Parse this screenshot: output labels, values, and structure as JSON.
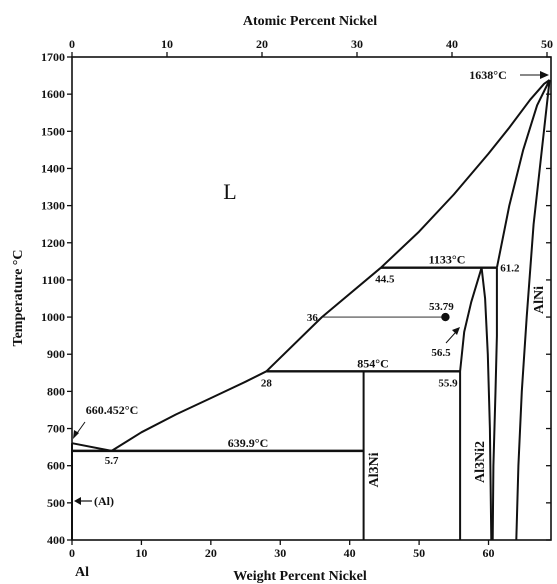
{
  "chart_data": {
    "type": "line",
    "title": "Atomic Percent Nickel",
    "xlabel": "Weight Percent Nickel",
    "ylabel": "Temperature °C",
    "x2label": "Atomic Percent Nickel",
    "xlim": [
      0,
      69
    ],
    "ylim": [
      400,
      1700
    ],
    "x2lim": [
      0,
      50
    ],
    "xticks": [
      0,
      10,
      20,
      30,
      40,
      50,
      60
    ],
    "yticks": [
      400,
      500,
      600,
      700,
      800,
      900,
      1000,
      1100,
      1200,
      1300,
      1400,
      1500,
      1600,
      1700
    ],
    "x2ticks": [
      0,
      10,
      20,
      30,
      40,
      50
    ],
    "grid": false,
    "series": [
      {
        "values": [
          [
            0,
            660.452
          ],
          [
            5.7,
            639.9
          ]
        ]
      },
      {
        "values": [
          [
            5.7,
            639.9
          ],
          [
            10,
            690
          ],
          [
            15,
            738
          ],
          [
            20,
            782
          ],
          [
            25,
            826
          ],
          [
            28,
            854
          ]
        ]
      },
      {
        "values": [
          [
            28,
            854
          ],
          [
            36,
            1000
          ],
          [
            44.5,
            1133
          ]
        ]
      },
      {
        "values": [
          [
            44.5,
            1133
          ],
          [
            50,
            1230
          ],
          [
            55,
            1330
          ],
          [
            60,
            1440
          ],
          [
            63,
            1510
          ],
          [
            66,
            1585
          ],
          [
            68,
            1628
          ],
          [
            68.8,
            1638
          ]
        ]
      },
      {
        "values": [
          [
            61.2,
            1133
          ],
          [
            63,
            1300
          ],
          [
            65,
            1450
          ],
          [
            67,
            1570
          ],
          [
            68.8,
            1638
          ]
        ]
      },
      {
        "values": [
          [
            64,
            400
          ],
          [
            64.3,
            600
          ],
          [
            64.8,
            800
          ],
          [
            65.5,
            1000
          ],
          [
            66.5,
            1250
          ],
          [
            68.8,
            1638
          ]
        ]
      },
      {
        "values": [
          [
            60.6,
            400
          ],
          [
            60.7,
            600
          ],
          [
            61,
            800
          ],
          [
            61.2,
            950
          ],
          [
            61.2,
            1133
          ]
        ]
      },
      {
        "values": [
          [
            55.9,
            400
          ],
          [
            55.9,
            854
          ],
          [
            56.5,
            960
          ],
          [
            57.5,
            1040
          ],
          [
            59,
            1133
          ]
        ]
      },
      {
        "values": [
          [
            59,
            1133
          ],
          [
            59.5,
            1050
          ],
          [
            59.9,
            900
          ],
          [
            60.2,
            700
          ],
          [
            60.4,
            400
          ]
        ]
      },
      {
        "values": [
          [
            42,
            400
          ],
          [
            42,
            854
          ]
        ]
      },
      {
        "values": [
          [
            0,
            400
          ],
          [
            0,
            660.452
          ]
        ]
      }
    ],
    "isotherms": [
      {
        "x": [
          0,
          42
        ],
        "y": 639.9,
        "label": "639.9°C"
      },
      {
        "x": [
          28,
          55.9
        ],
        "y": 854,
        "label": "854°C"
      },
      {
        "x": [
          44.5,
          61.2
        ],
        "y": 1133,
        "label": "1133°C"
      }
    ],
    "tie_line": {
      "x": [
        36,
        53.79
      ],
      "y": 1000
    },
    "point": {
      "x": 53.79,
      "y": 1000,
      "label": "53.79"
    },
    "annotations": [
      {
        "text": "660.452°C",
        "x": 0,
        "y": 660.452
      },
      {
        "text": "5.7",
        "x": 5.7,
        "y": 639.9
      },
      {
        "text": "28",
        "x": 28,
        "y": 854
      },
      {
        "text": "36",
        "x": 36,
        "y": 1000
      },
      {
        "text": "44.5",
        "x": 44.5,
        "y": 1133
      },
      {
        "text": "55.9",
        "x": 55.9,
        "y": 854
      },
      {
        "text": "56.5",
        "x": 56.5,
        "y": 960
      },
      {
        "text": "61.2",
        "x": 61.2,
        "y": 1133
      },
      {
        "text": "1638°C",
        "x": 68.8,
        "y": 1638
      }
    ],
    "phases": {
      "liquid": "L",
      "al": "(Al)",
      "al3ni": "Al3Ni",
      "al3ni2": "Al3Ni2",
      "alni": "AlNi",
      "al_bottom": "Al"
    },
    "colors": {
      "line": "#111111",
      "background": "#ffffff"
    }
  }
}
